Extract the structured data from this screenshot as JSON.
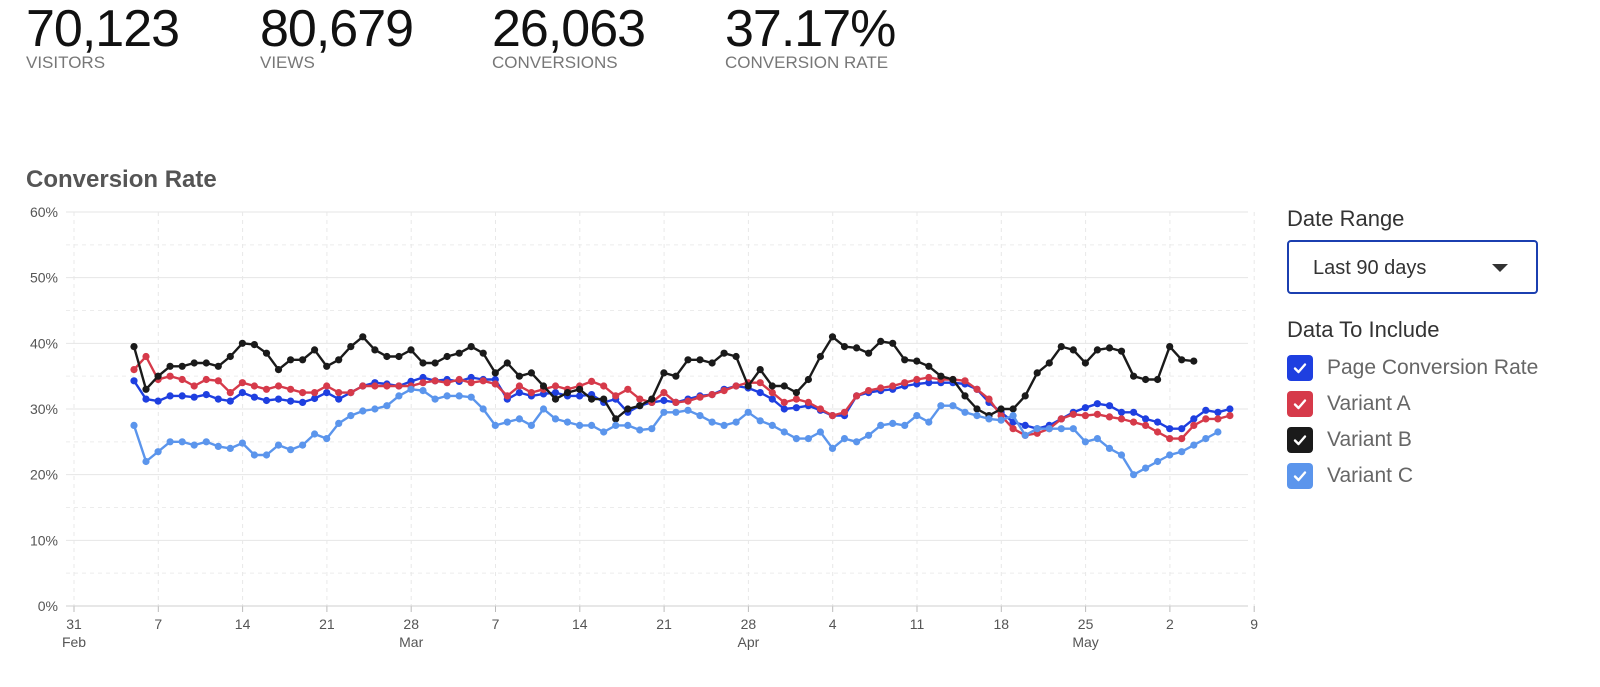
{
  "stats": [
    {
      "value": "70,123",
      "label": "VISITORS"
    },
    {
      "value": "80,679",
      "label": "VIEWS"
    },
    {
      "value": "26,063",
      "label": "CONVERSIONS"
    },
    {
      "value": "37.17%",
      "label": "CONVERSION RATE"
    }
  ],
  "chart_title": "Conversion Rate",
  "panel": {
    "date_range_label": "Date Range",
    "date_range_value": "Last 90 days",
    "data_label": "Data To Include",
    "options": [
      {
        "label": "Page Conversion Rate",
        "checked": true,
        "color": "#1e3fe0"
      },
      {
        "label": "Variant A",
        "checked": true,
        "color": "#d63a4a"
      },
      {
        "label": "Variant B",
        "checked": true,
        "color": "#1a1a1a"
      },
      {
        "label": "Variant C",
        "checked": true,
        "color": "#5b95ec"
      }
    ]
  },
  "chart_data": {
    "type": "line",
    "title": "Conversion Rate",
    "ylim": [
      0,
      60
    ],
    "y_ticks": [
      "0%",
      "10%",
      "20%",
      "30%",
      "40%",
      "50%",
      "60%"
    ],
    "x_ticks": [
      {
        "day": "31",
        "month": "Feb"
      },
      {
        "day": "7",
        "month": ""
      },
      {
        "day": "14",
        "month": ""
      },
      {
        "day": "21",
        "month": ""
      },
      {
        "day": "28",
        "month": "Mar"
      },
      {
        "day": "7",
        "month": ""
      },
      {
        "day": "14",
        "month": ""
      },
      {
        "day": "21",
        "month": ""
      },
      {
        "day": "28",
        "month": "Apr"
      },
      {
        "day": "4",
        "month": ""
      },
      {
        "day": "11",
        "month": ""
      },
      {
        "day": "18",
        "month": ""
      },
      {
        "day": "25",
        "month": "May"
      },
      {
        "day": "2",
        "month": ""
      },
      {
        "day": "9",
        "month": ""
      }
    ],
    "grid": true,
    "series": [
      {
        "name": "Page Conversion Rate",
        "color": "#1e3fe0",
        "values": [
          34.3,
          31.5,
          31.2,
          32.0,
          32.0,
          31.8,
          32.2,
          31.5,
          31.2,
          32.5,
          31.8,
          31.3,
          31.5,
          31.2,
          31.0,
          31.6,
          32.5,
          31.5,
          32.5,
          33.5,
          34.0,
          33.8,
          33.5,
          34.2,
          34.8,
          34.3,
          34.5,
          34.2,
          34.8,
          34.5,
          34.5,
          31.5,
          32.5,
          32.0,
          32.3,
          32.5,
          32.0,
          32.0,
          32.2,
          31.0,
          31.5,
          29.5,
          30.5,
          31.0,
          31.3,
          31.0,
          31.5,
          32.0,
          32.2,
          33.0,
          33.5,
          33.2,
          32.5,
          31.5,
          30.0,
          30.2,
          30.5,
          29.8,
          29.0,
          29.0,
          32.0,
          32.5,
          32.8,
          33.0,
          33.5,
          33.8,
          34.0,
          34.0,
          34.0,
          33.8,
          33.0,
          31.0,
          29.5,
          28.0,
          27.5,
          27.0,
          27.5,
          28.5,
          29.5,
          30.2,
          30.8,
          30.5,
          29.5,
          29.5,
          28.5,
          28.0,
          27.0,
          27.0,
          28.5,
          29.8,
          29.5,
          30.0
        ]
      },
      {
        "name": "Variant A",
        "color": "#d63a4a",
        "values": [
          36.0,
          38.0,
          34.5,
          35.0,
          34.5,
          33.5,
          34.5,
          34.3,
          32.5,
          34.0,
          33.5,
          33.0,
          33.5,
          33.0,
          32.5,
          32.5,
          33.5,
          32.5,
          32.5,
          33.5,
          33.5,
          33.5,
          33.5,
          33.5,
          34.0,
          34.3,
          34.0,
          34.5,
          34.0,
          34.3,
          33.8,
          32.0,
          33.5,
          32.5,
          33.0,
          33.5,
          33.0,
          33.5,
          34.2,
          33.5,
          32.0,
          33.0,
          31.5,
          31.0,
          32.5,
          31.0,
          31.2,
          31.8,
          32.2,
          32.8,
          33.5,
          34.0,
          34.0,
          32.5,
          31.0,
          31.5,
          31.0,
          30.0,
          29.0,
          29.5,
          32.0,
          32.8,
          33.2,
          33.5,
          34.0,
          34.5,
          34.8,
          34.5,
          34.5,
          34.3,
          33.0,
          31.5,
          29.0,
          27.0,
          26.0,
          26.3,
          27.0,
          28.5,
          29.2,
          29.0,
          29.2,
          28.8,
          28.5,
          28.0,
          27.5,
          26.5,
          25.5,
          25.5,
          27.5,
          28.5,
          28.5,
          29.0
        ]
      },
      {
        "name": "Variant B",
        "color": "#1a1a1a",
        "values": [
          39.5,
          33.0,
          35.0,
          36.5,
          36.5,
          37.0,
          37.0,
          36.5,
          38.0,
          40.0,
          39.8,
          38.5,
          36.0,
          37.5,
          37.5,
          39.0,
          36.5,
          37.5,
          39.5,
          41.0,
          39.0,
          38.0,
          38.0,
          39.0,
          37.0,
          37.0,
          38.0,
          38.5,
          39.5,
          38.5,
          35.5,
          37.0,
          35.0,
          35.5,
          33.5,
          31.5,
          32.5,
          33.0,
          31.5,
          31.5,
          28.5,
          30.0,
          30.5,
          31.5,
          35.5,
          35.0,
          37.5,
          37.5,
          37.0,
          38.5,
          38.0,
          33.5,
          36.0,
          33.5,
          33.5,
          32.5,
          34.5,
          38.0,
          41.0,
          39.5,
          39.3,
          38.5,
          40.3,
          40.0,
          37.5,
          37.3,
          36.5,
          35.0,
          34.5,
          32.0,
          30.0,
          29.0,
          30.0,
          30.0,
          32.0,
          35.5,
          37.0,
          39.5,
          39.0,
          37.0,
          39.0,
          39.3,
          38.8,
          35.0,
          34.5,
          34.5,
          39.5,
          37.5,
          37.3
        ]
      },
      {
        "name": "Variant C",
        "color": "#5b95ec",
        "values": [
          27.5,
          22.0,
          23.5,
          25.0,
          25.0,
          24.5,
          25.0,
          24.3,
          24.0,
          24.8,
          23.0,
          23.0,
          24.5,
          23.8,
          24.5,
          26.2,
          25.5,
          27.8,
          29.0,
          29.7,
          30.0,
          30.5,
          32.0,
          33.0,
          32.8,
          31.5,
          32.0,
          32.0,
          31.8,
          30.0,
          27.5,
          28.0,
          28.5,
          27.5,
          30.0,
          28.5,
          28.0,
          27.5,
          27.5,
          26.5,
          27.5,
          27.5,
          26.8,
          27.0,
          29.5,
          29.5,
          29.8,
          29.0,
          28.0,
          27.5,
          28.0,
          29.5,
          28.2,
          27.5,
          26.5,
          25.5,
          25.5,
          26.5,
          24.0,
          25.5,
          25.0,
          26.0,
          27.5,
          27.8,
          27.5,
          29.0,
          28.0,
          30.5,
          30.5,
          29.5,
          29.0,
          28.5,
          28.3,
          29.0,
          26.0,
          27.0,
          27.0,
          27.0,
          27.0,
          25.0,
          25.5,
          24.0,
          23.0,
          20.0,
          21.0,
          22.0,
          23.0,
          23.5,
          24.5,
          25.5,
          26.5
        ]
      }
    ]
  }
}
